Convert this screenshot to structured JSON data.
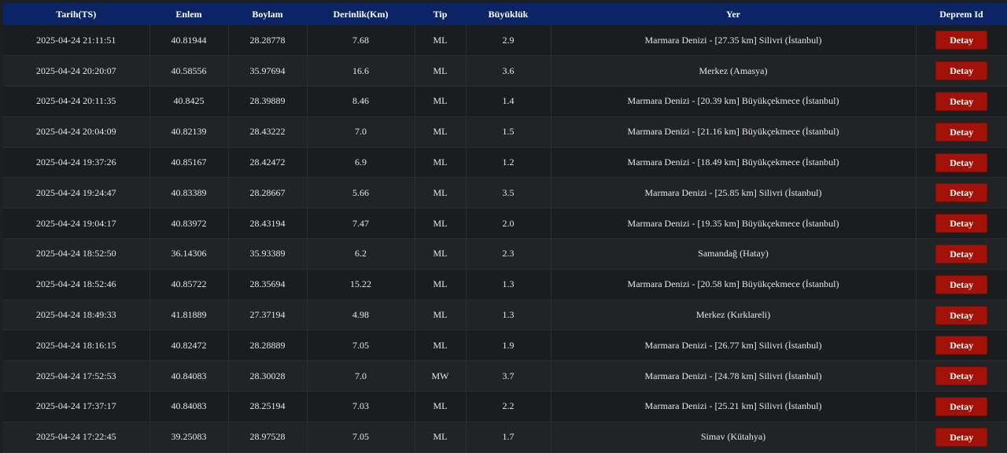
{
  "table": {
    "headers": [
      "Tarih(TS)",
      "Enlem",
      "Boylam",
      "Derinlik(Km)",
      "Tip",
      "Büyüklük",
      "Yer",
      "Deprem Id"
    ],
    "button_label": "Detay",
    "rows": [
      [
        "2025-04-24 21:11:51",
        "40.81944",
        "28.28778",
        "7.68",
        "ML",
        "2.9",
        "Marmara Denizi - [27.35 km] Silivri (İstanbul)"
      ],
      [
        "2025-04-24 20:20:07",
        "40.58556",
        "35.97694",
        "16.6",
        "ML",
        "3.6",
        "Merkez (Amasya)"
      ],
      [
        "2025-04-24 20:11:35",
        "40.8425",
        "28.39889",
        "8.46",
        "ML",
        "1.4",
        "Marmara Denizi - [20.39 km] Büyükçekmece (İstanbul)"
      ],
      [
        "2025-04-24 20:04:09",
        "40.82139",
        "28.43222",
        "7.0",
        "ML",
        "1.5",
        "Marmara Denizi - [21.16 km] Büyükçekmece (İstanbul)"
      ],
      [
        "2025-04-24 19:37:26",
        "40.85167",
        "28.42472",
        "6.9",
        "ML",
        "1.2",
        "Marmara Denizi - [18.49 km] Büyükçekmece (İstanbul)"
      ],
      [
        "2025-04-24 19:24:47",
        "40.83389",
        "28.28667",
        "5.66",
        "ML",
        "3.5",
        "Marmara Denizi - [25.85 km] Silivri (İstanbul)"
      ],
      [
        "2025-04-24 19:04:17",
        "40.83972",
        "28.43194",
        "7.47",
        "ML",
        "2.0",
        "Marmara Denizi - [19.35 km] Büyükçekmece (İstanbul)"
      ],
      [
        "2025-04-24 18:52:50",
        "36.14306",
        "35.93389",
        "6.2",
        "ML",
        "2.3",
        "Samandağ (Hatay)"
      ],
      [
        "2025-04-24 18:52:46",
        "40.85722",
        "28.35694",
        "15.22",
        "ML",
        "1.3",
        "Marmara Denizi - [20.58 km] Büyükçekmece (İstanbul)"
      ],
      [
        "2025-04-24 18:49:33",
        "41.81889",
        "27.37194",
        "4.98",
        "ML",
        "1.3",
        "Merkez (Kırklareli)"
      ],
      [
        "2025-04-24 18:16:15",
        "40.82472",
        "28.28889",
        "7.05",
        "ML",
        "1.9",
        "Marmara Denizi - [26.77 km] Silivri (İstanbul)"
      ],
      [
        "2025-04-24 17:52:53",
        "40.84083",
        "28.30028",
        "7.0",
        "MW",
        "3.7",
        "Marmara Denizi - [24.78 km] Silivri (İstanbul)"
      ],
      [
        "2025-04-24 17:37:17",
        "40.84083",
        "28.25194",
        "7.03",
        "ML",
        "2.2",
        "Marmara Denizi - [25.21 km] Silivri (İstanbul)"
      ],
      [
        "2025-04-24 17:22:45",
        "39.25083",
        "28.97528",
        "7.05",
        "ML",
        "1.7",
        "Simav (Kütahya)"
      ]
    ]
  },
  "colors": {
    "header_bg": "#0a2466",
    "button_bg": "#a31208",
    "row_odd": "#1b1c1f",
    "row_even": "#222326"
  }
}
